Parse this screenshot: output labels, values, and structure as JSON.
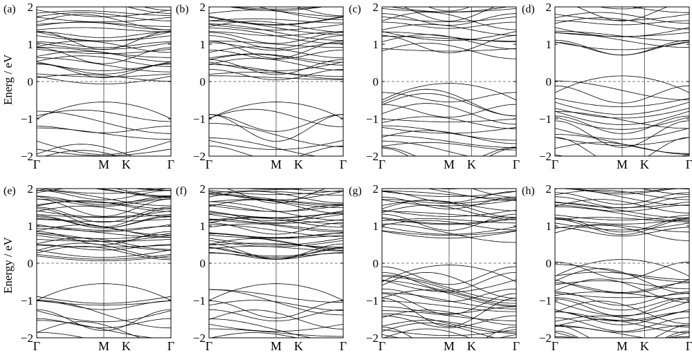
{
  "figure": {
    "y_labels": [
      "Energ / eV",
      "Energy / eV"
    ],
    "colors": {
      "line": "#000000",
      "fermi": "#777777",
      "frame": "#000000"
    }
  },
  "chart_data": [
    {
      "type": "line",
      "label": "(a)",
      "ylim": [
        -2,
        2
      ],
      "yticks": [
        "2",
        "1",
        "0",
        "−1",
        "−2"
      ],
      "xticks": [
        "Γ",
        "M",
        "K",
        "Γ"
      ],
      "kpath": [
        0,
        0.5,
        0.667,
        1.0
      ],
      "fermi_level": 0,
      "fermi_style": "dashed",
      "bands": {
        "conduction_min": -0.1,
        "conduction_max": 2.0,
        "valence_max": -0.55,
        "valence_min": -2.0,
        "conduction_count": 30,
        "valence_count": 9
      }
    },
    {
      "type": "line",
      "label": "(b)",
      "ylim": [
        -2,
        2
      ],
      "yticks": [
        "2",
        "1",
        "0",
        "−1",
        "−2"
      ],
      "xticks": [
        "Γ",
        "M",
        "K",
        "Γ"
      ],
      "kpath": [
        0,
        0.5,
        0.667,
        1.0
      ],
      "fermi_level": 0,
      "fermi_style": "dashed",
      "bands": {
        "conduction_min": -0.1,
        "conduction_max": 2.0,
        "valence_max": -0.55,
        "valence_min": -2.0,
        "conduction_count": 30,
        "valence_count": 9
      }
    },
    {
      "type": "line",
      "label": "(c)",
      "ylim": [
        -2,
        2
      ],
      "yticks": [
        "2",
        "1",
        "0",
        "−1",
        "−2"
      ],
      "xticks": [
        "Γ",
        "M",
        "K",
        "Γ"
      ],
      "kpath": [
        0,
        0.5,
        0.667,
        1.0
      ],
      "fermi_level": 0,
      "fermi_style": "dashed",
      "bands": {
        "conduction_min": 0.6,
        "conduction_max": 2.0,
        "valence_max": -0.05,
        "valence_min": -2.0,
        "conduction_count": 16,
        "valence_count": 16
      }
    },
    {
      "type": "line",
      "label": "(d)",
      "ylim": [
        -2,
        2
      ],
      "yticks": [
        "2",
        "1",
        "0",
        "−1",
        "−2"
      ],
      "xticks": [
        "Γ",
        "M",
        "K",
        "Γ"
      ],
      "kpath": [
        0,
        0.5,
        0.667,
        1.0
      ],
      "fermi_level": 0,
      "fermi_style": "dashed",
      "bands": {
        "conduction_min": 0.65,
        "conduction_max": 2.0,
        "valence_max": 0.15,
        "valence_min": -2.0,
        "conduction_count": 14,
        "valence_count": 18
      }
    },
    {
      "type": "line",
      "label": "(e)",
      "ylim": [
        -2,
        2
      ],
      "yticks": [
        "2",
        "1",
        "0",
        "−1",
        "−2"
      ],
      "xticks": [
        "Γ",
        "M",
        "K",
        "Γ"
      ],
      "kpath": [
        0,
        0.5,
        0.667,
        1.0
      ],
      "fermi_level": 0,
      "fermi_style": "dashed",
      "bands": {
        "conduction_min": 0.0,
        "conduction_max": 2.0,
        "valence_max": -0.55,
        "valence_min": -2.0,
        "conduction_count": 40,
        "valence_count": 12
      }
    },
    {
      "type": "line",
      "label": "(f)",
      "ylim": [
        -2,
        2
      ],
      "yticks": [
        "2",
        "1",
        "0",
        "−1",
        "−2"
      ],
      "xticks": [
        "Γ",
        "M",
        "K",
        "Γ"
      ],
      "kpath": [
        0,
        0.5,
        0.667,
        1.0
      ],
      "fermi_level": 0,
      "fermi_style": "dashed",
      "bands": {
        "conduction_min": 0.0,
        "conduction_max": 2.0,
        "valence_max": -0.55,
        "valence_min": -2.0,
        "conduction_count": 40,
        "valence_count": 12
      }
    },
    {
      "type": "line",
      "label": "(g)",
      "ylim": [
        -2,
        2
      ],
      "yticks": [
        "2",
        "1",
        "0",
        "−1",
        "−2"
      ],
      "xticks": [
        "Γ",
        "M",
        "K",
        "Γ"
      ],
      "kpath": [
        0,
        0.5,
        0.667,
        1.0
      ],
      "fermi_level": 0,
      "fermi_style": "dashed",
      "bands": {
        "conduction_min": 0.6,
        "conduction_max": 2.0,
        "valence_max": -0.05,
        "valence_min": -2.0,
        "conduction_count": 24,
        "valence_count": 26
      }
    },
    {
      "type": "line",
      "label": "(h)",
      "ylim": [
        -2,
        2
      ],
      "yticks": [
        "2",
        "1",
        "0",
        "−1",
        "−2"
      ],
      "xticks": [
        "Γ",
        "M",
        "K",
        "Γ"
      ],
      "kpath": [
        0,
        0.5,
        0.667,
        1.0
      ],
      "fermi_level": 0,
      "fermi_style": "dashed",
      "bands": {
        "conduction_min": 0.6,
        "conduction_max": 2.0,
        "valence_max": 0.1,
        "valence_min": -2.0,
        "conduction_count": 22,
        "valence_count": 28
      }
    }
  ]
}
